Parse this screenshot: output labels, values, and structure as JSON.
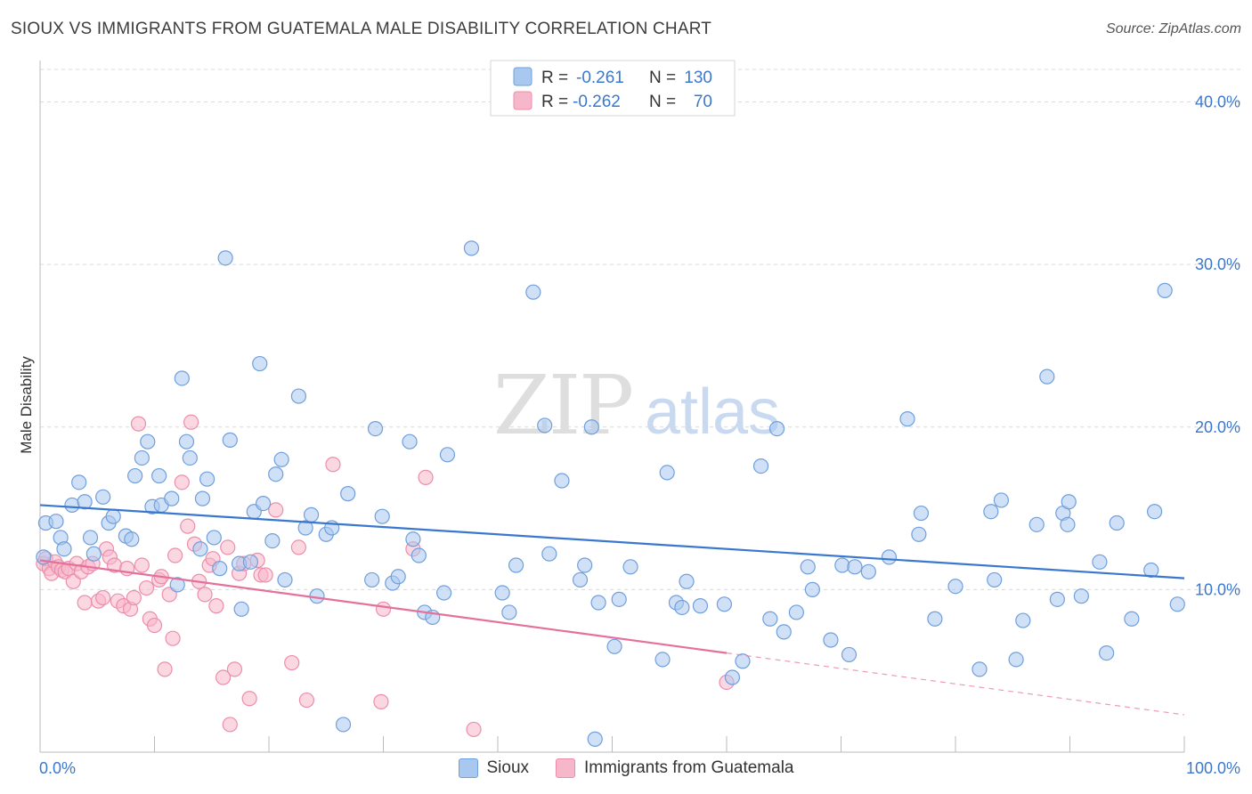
{
  "title": "SIOUX VS IMMIGRANTS FROM GUATEMALA MALE DISABILITY CORRELATION CHART",
  "source": "Source: ZipAtlas.com",
  "watermark": {
    "zip": "ZIP",
    "atlas": "atlas"
  },
  "colors": {
    "sioux_fill": "#a9c8f0",
    "sioux_stroke": "#6f9fdc",
    "sioux_line": "#3a78d0",
    "guat_fill": "#f7b7ca",
    "guat_stroke": "#ec8eab",
    "guat_line": "#e4709b",
    "axis_text": "#3a78d0",
    "grid": "#d9d9d9"
  },
  "legend_box": {
    "rows": [
      {
        "r_label": "R =",
        "r_value": "-0.261",
        "n_label": "N =",
        "n_value": "130"
      },
      {
        "r_label": "R =",
        "r_value": "-0.262",
        "n_label": "N =",
        "n_value": "70"
      }
    ]
  },
  "bottom_legend": [
    "Sioux",
    "Immigrants from Guatemala"
  ],
  "chart_data": {
    "type": "scatter",
    "title": "SIOUX VS IMMIGRANTS FROM GUATEMALA MALE DISABILITY CORRELATION CHART",
    "xlabel": "",
    "ylabel": "Male Disability",
    "xlim": [
      0,
      100
    ],
    "ylim": [
      0,
      42
    ],
    "x_tick_labels": [
      "0.0%",
      "100.0%"
    ],
    "y_ticks": [
      10,
      20,
      30,
      40
    ],
    "y_tick_labels": [
      "10.0%",
      "20.0%",
      "30.0%",
      "40.0%"
    ],
    "grid": true,
    "series": [
      {
        "name": "Sioux",
        "r": -0.261,
        "n": 130,
        "trend": {
          "x0": 0,
          "y0": 15.2,
          "x1": 100,
          "y1": 10.7
        },
        "points": [
          [
            0.3,
            12.0
          ],
          [
            0.5,
            14.1
          ],
          [
            1.4,
            14.2
          ],
          [
            1.8,
            13.2
          ],
          [
            2.1,
            12.5
          ],
          [
            2.8,
            15.2
          ],
          [
            3.4,
            16.6
          ],
          [
            3.9,
            15.4
          ],
          [
            4.4,
            13.2
          ],
          [
            4.7,
            12.2
          ],
          [
            5.5,
            15.7
          ],
          [
            6.0,
            14.1
          ],
          [
            6.4,
            14.5
          ],
          [
            7.5,
            13.3
          ],
          [
            8.0,
            13.1
          ],
          [
            8.3,
            17.0
          ],
          [
            8.9,
            18.1
          ],
          [
            9.4,
            19.1
          ],
          [
            9.8,
            15.1
          ],
          [
            10.4,
            17.0
          ],
          [
            10.6,
            15.2
          ],
          [
            11.5,
            15.6
          ],
          [
            12.0,
            10.3
          ],
          [
            12.4,
            23.0
          ],
          [
            12.8,
            19.1
          ],
          [
            13.1,
            18.1
          ],
          [
            14.0,
            12.5
          ],
          [
            14.2,
            15.6
          ],
          [
            14.6,
            16.8
          ],
          [
            15.2,
            13.2
          ],
          [
            15.7,
            11.3
          ],
          [
            16.2,
            30.4
          ],
          [
            16.6,
            19.2
          ],
          [
            17.4,
            11.6
          ],
          [
            17.6,
            8.8
          ],
          [
            18.4,
            11.7
          ],
          [
            18.7,
            14.8
          ],
          [
            19.2,
            23.9
          ],
          [
            19.5,
            15.3
          ],
          [
            20.3,
            13.0
          ],
          [
            20.6,
            17.1
          ],
          [
            21.1,
            18.0
          ],
          [
            21.4,
            10.6
          ],
          [
            22.6,
            21.9
          ],
          [
            23.2,
            13.8
          ],
          [
            23.7,
            14.6
          ],
          [
            24.2,
            9.6
          ],
          [
            25.0,
            13.4
          ],
          [
            25.5,
            13.8
          ],
          [
            26.5,
            1.7
          ],
          [
            26.9,
            15.9
          ],
          [
            29.0,
            10.6
          ],
          [
            29.3,
            19.9
          ],
          [
            29.9,
            14.5
          ],
          [
            30.8,
            10.4
          ],
          [
            31.3,
            10.8
          ],
          [
            32.3,
            19.1
          ],
          [
            32.6,
            13.1
          ],
          [
            33.1,
            12.1
          ],
          [
            33.6,
            8.6
          ],
          [
            34.3,
            8.3
          ],
          [
            35.3,
            9.8
          ],
          [
            35.6,
            18.3
          ],
          [
            37.7,
            31.0
          ],
          [
            40.4,
            9.8
          ],
          [
            41.0,
            8.6
          ],
          [
            41.6,
            11.5
          ],
          [
            43.1,
            28.3
          ],
          [
            44.1,
            20.1
          ],
          [
            44.5,
            12.2
          ],
          [
            45.6,
            16.7
          ],
          [
            47.2,
            10.6
          ],
          [
            47.6,
            11.5
          ],
          [
            48.2,
            20.0
          ],
          [
            48.8,
            9.2
          ],
          [
            48.5,
            0.8
          ],
          [
            50.2,
            6.5
          ],
          [
            50.6,
            9.4
          ],
          [
            51.6,
            11.4
          ],
          [
            54.4,
            5.7
          ],
          [
            54.8,
            17.2
          ],
          [
            55.6,
            9.2
          ],
          [
            56.1,
            8.9
          ],
          [
            56.5,
            10.5
          ],
          [
            57.7,
            9.0
          ],
          [
            59.8,
            9.1
          ],
          [
            60.5,
            4.6
          ],
          [
            61.4,
            5.6
          ],
          [
            63.0,
            17.6
          ],
          [
            63.8,
            8.2
          ],
          [
            64.4,
            19.9
          ],
          [
            65.0,
            7.4
          ],
          [
            66.1,
            8.6
          ],
          [
            67.1,
            11.4
          ],
          [
            67.5,
            10.0
          ],
          [
            69.1,
            6.9
          ],
          [
            70.1,
            11.5
          ],
          [
            70.7,
            6.0
          ],
          [
            71.2,
            11.4
          ],
          [
            72.4,
            11.1
          ],
          [
            74.2,
            12.0
          ],
          [
            75.8,
            20.5
          ],
          [
            76.8,
            13.4
          ],
          [
            77.0,
            14.7
          ],
          [
            78.2,
            8.2
          ],
          [
            80.0,
            10.2
          ],
          [
            82.1,
            5.1
          ],
          [
            83.1,
            14.8
          ],
          [
            83.4,
            10.6
          ],
          [
            84.0,
            15.5
          ],
          [
            85.3,
            5.7
          ],
          [
            85.9,
            8.1
          ],
          [
            87.1,
            14.0
          ],
          [
            88.0,
            23.1
          ],
          [
            88.9,
            9.4
          ],
          [
            89.4,
            14.7
          ],
          [
            89.9,
            15.4
          ],
          [
            89.8,
            14.0
          ],
          [
            91.0,
            9.6
          ],
          [
            92.6,
            11.7
          ],
          [
            93.2,
            6.1
          ],
          [
            94.1,
            14.1
          ],
          [
            95.4,
            8.2
          ],
          [
            97.1,
            11.2
          ],
          [
            97.4,
            14.8
          ],
          [
            98.3,
            28.4
          ],
          [
            99.4,
            9.1
          ]
        ]
      },
      {
        "name": "Immigrants from Guatemala",
        "r": -0.262,
        "n": 70,
        "trend": {
          "x0": 0,
          "y0": 11.8,
          "x1": 60,
          "y1": 6.1
        },
        "trend_extension": {
          "x0": 60,
          "y0": 6.1,
          "x1": 100,
          "y1": 2.3
        },
        "points": [
          [
            0.3,
            11.6
          ],
          [
            0.5,
            11.9
          ],
          [
            0.8,
            11.3
          ],
          [
            1.0,
            11.0
          ],
          [
            1.3,
            11.7
          ],
          [
            1.6,
            11.4
          ],
          [
            1.9,
            11.2
          ],
          [
            2.2,
            11.1
          ],
          [
            2.5,
            11.3
          ],
          [
            2.9,
            10.5
          ],
          [
            3.2,
            11.6
          ],
          [
            3.6,
            11.1
          ],
          [
            3.9,
            9.2
          ],
          [
            4.2,
            11.4
          ],
          [
            4.6,
            11.6
          ],
          [
            5.1,
            9.3
          ],
          [
            5.5,
            9.5
          ],
          [
            5.8,
            12.5
          ],
          [
            6.1,
            12.0
          ],
          [
            6.5,
            11.5
          ],
          [
            6.8,
            9.3
          ],
          [
            7.3,
            9.0
          ],
          [
            7.6,
            11.3
          ],
          [
            7.9,
            8.8
          ],
          [
            8.2,
            9.5
          ],
          [
            8.6,
            20.2
          ],
          [
            8.9,
            11.5
          ],
          [
            9.3,
            10.1
          ],
          [
            9.6,
            8.2
          ],
          [
            10.0,
            7.8
          ],
          [
            10.4,
            10.6
          ],
          [
            10.6,
            10.8
          ],
          [
            10.9,
            5.1
          ],
          [
            11.3,
            9.7
          ],
          [
            11.6,
            7.0
          ],
          [
            11.8,
            12.1
          ],
          [
            12.4,
            16.6
          ],
          [
            12.9,
            13.9
          ],
          [
            13.2,
            20.3
          ],
          [
            13.5,
            12.8
          ],
          [
            13.9,
            10.5
          ],
          [
            14.4,
            9.7
          ],
          [
            14.8,
            11.5
          ],
          [
            15.1,
            11.9
          ],
          [
            15.4,
            9.0
          ],
          [
            16.0,
            4.6
          ],
          [
            16.4,
            12.6
          ],
          [
            16.6,
            1.7
          ],
          [
            17.0,
            5.1
          ],
          [
            17.4,
            11.0
          ],
          [
            17.8,
            11.6
          ],
          [
            18.3,
            3.3
          ],
          [
            19.0,
            11.8
          ],
          [
            19.3,
            10.9
          ],
          [
            19.7,
            10.9
          ],
          [
            20.6,
            14.9
          ],
          [
            22.0,
            5.5
          ],
          [
            22.6,
            12.6
          ],
          [
            23.3,
            3.2
          ],
          [
            25.6,
            17.7
          ],
          [
            29.8,
            3.1
          ],
          [
            30.0,
            8.8
          ],
          [
            32.6,
            12.5
          ],
          [
            33.7,
            16.9
          ],
          [
            37.9,
            1.4
          ],
          [
            60.0,
            4.3
          ]
        ]
      }
    ]
  }
}
